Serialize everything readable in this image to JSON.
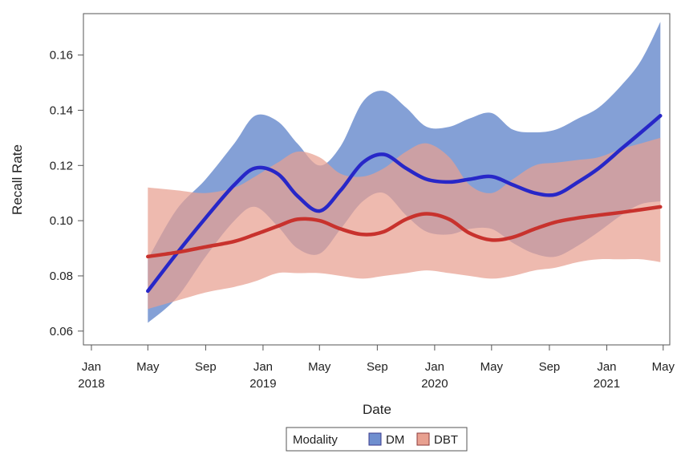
{
  "chart_data": {
    "type": "line",
    "title": "",
    "xlabel": "Date",
    "ylabel": "Recall Rate",
    "x_range": [
      "2017-12-15",
      "2021-05-15"
    ],
    "ylim": [
      0.055,
      0.175
    ],
    "grid": false,
    "x_ticks": [
      {
        "date": "2018-01-01",
        "month": "Jan",
        "year": "2018"
      },
      {
        "date": "2018-05-01",
        "month": "May",
        "year": ""
      },
      {
        "date": "2018-09-01",
        "month": "Sep",
        "year": ""
      },
      {
        "date": "2019-01-01",
        "month": "Jan",
        "year": "2019"
      },
      {
        "date": "2019-05-01",
        "month": "May",
        "year": ""
      },
      {
        "date": "2019-09-01",
        "month": "Sep",
        "year": ""
      },
      {
        "date": "2020-01-01",
        "month": "Jan",
        "year": "2020"
      },
      {
        "date": "2020-05-01",
        "month": "May",
        "year": ""
      },
      {
        "date": "2020-09-01",
        "month": "Sep",
        "year": ""
      },
      {
        "date": "2021-01-01",
        "month": "Jan",
        "year": "2021"
      },
      {
        "date": "2021-05-01",
        "month": "May",
        "year": ""
      }
    ],
    "y_ticks": [
      {
        "value": 0.06,
        "label": "0.06"
      },
      {
        "value": 0.08,
        "label": "0.08"
      },
      {
        "value": 0.1,
        "label": "0.10"
      },
      {
        "value": 0.12,
        "label": "0.12"
      },
      {
        "value": 0.14,
        "label": "0.14"
      },
      {
        "value": 0.16,
        "label": "0.16"
      }
    ],
    "legend": {
      "title": "Modality",
      "position": "bottom"
    },
    "series": [
      {
        "name": "DM",
        "line_color": "#2727c8",
        "band_color": "#6f8fcf",
        "x": [
          "2018-05-01",
          "2018-07-01",
          "2018-09-01",
          "2018-11-01",
          "2018-12-15",
          "2019-02-01",
          "2019-03-15",
          "2019-05-01",
          "2019-06-15",
          "2019-08-01",
          "2019-09-15",
          "2019-11-01",
          "2019-12-15",
          "2020-02-01",
          "2020-03-15",
          "2020-05-01",
          "2020-06-15",
          "2020-08-01",
          "2020-09-15",
          "2020-11-01",
          "2020-12-15",
          "2021-02-01",
          "2021-03-15",
          "2021-04-25"
        ],
        "y": [
          0.0745,
          0.088,
          0.101,
          0.113,
          0.119,
          0.117,
          0.109,
          0.1035,
          0.111,
          0.121,
          0.124,
          0.119,
          0.115,
          0.114,
          0.115,
          0.116,
          0.113,
          0.11,
          0.1095,
          0.114,
          0.119,
          0.126,
          0.132,
          0.138
        ],
        "lower": [
          0.063,
          0.072,
          0.087,
          0.1,
          0.105,
          0.098,
          0.09,
          0.088,
          0.097,
          0.107,
          0.11,
          0.102,
          0.096,
          0.095,
          0.097,
          0.097,
          0.092,
          0.088,
          0.087,
          0.091,
          0.096,
          0.102,
          0.106,
          0.107
        ],
        "upper": [
          0.086,
          0.104,
          0.115,
          0.128,
          0.138,
          0.136,
          0.128,
          0.12,
          0.127,
          0.143,
          0.147,
          0.141,
          0.134,
          0.134,
          0.137,
          0.139,
          0.133,
          0.132,
          0.133,
          0.137,
          0.141,
          0.149,
          0.158,
          0.172
        ]
      },
      {
        "name": "DBT",
        "line_color": "#c8322d",
        "band_color": "#e8a090",
        "x": [
          "2018-05-01",
          "2018-07-01",
          "2018-09-01",
          "2018-11-01",
          "2018-12-15",
          "2019-02-01",
          "2019-03-15",
          "2019-05-01",
          "2019-06-15",
          "2019-08-01",
          "2019-09-15",
          "2019-11-01",
          "2019-12-15",
          "2020-02-01",
          "2020-03-15",
          "2020-05-01",
          "2020-06-15",
          "2020-08-01",
          "2020-09-15",
          "2020-11-01",
          "2020-12-15",
          "2021-02-01",
          "2021-03-15",
          "2021-04-25"
        ],
        "y": [
          0.087,
          0.0885,
          0.0905,
          0.0925,
          0.095,
          0.098,
          0.1005,
          0.1,
          0.097,
          0.095,
          0.096,
          0.1005,
          0.1025,
          0.1005,
          0.0955,
          0.093,
          0.094,
          0.097,
          0.0995,
          0.101,
          0.102,
          0.103,
          0.104,
          0.105
        ],
        "lower": [
          0.068,
          0.071,
          0.074,
          0.076,
          0.078,
          0.081,
          0.081,
          0.081,
          0.08,
          0.079,
          0.08,
          0.081,
          0.082,
          0.081,
          0.08,
          0.079,
          0.08,
          0.082,
          0.083,
          0.085,
          0.086,
          0.086,
          0.086,
          0.085
        ],
        "upper": [
          0.112,
          0.111,
          0.11,
          0.112,
          0.116,
          0.121,
          0.125,
          0.123,
          0.117,
          0.116,
          0.119,
          0.125,
          0.128,
          0.123,
          0.113,
          0.11,
          0.115,
          0.12,
          0.121,
          0.122,
          0.123,
          0.126,
          0.128,
          0.13
        ]
      }
    ]
  }
}
